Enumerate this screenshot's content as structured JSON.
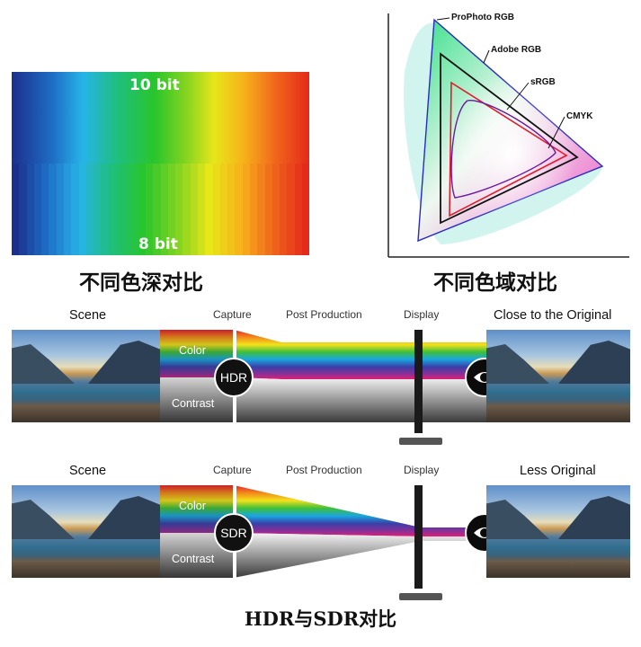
{
  "bit_depth": {
    "top_label": "10 bit",
    "bottom_label": "8 bit",
    "caption": "不同色深对比"
  },
  "gamut": {
    "labels": [
      "ProPhoto RGB",
      "Adobe RGB",
      "sRGB",
      "CMYK"
    ],
    "caption": "不同色域对比"
  },
  "hdr_row": {
    "stages": [
      "Scene",
      "Capture",
      "Post Production",
      "Display",
      "Close to the Original"
    ],
    "badge": "HDR",
    "color_label": "Color",
    "contrast_label": "Contrast"
  },
  "sdr_row": {
    "stages": [
      "Scene",
      "Capture",
      "Post Production",
      "Display",
      "Less Original"
    ],
    "badge": "SDR",
    "color_label": "Color",
    "contrast_label": "Contrast"
  },
  "bottom_caption": "HDR与SDR对比",
  "colors": {
    "spectrum": [
      "#e8202a",
      "#f28a1b",
      "#f3e21a",
      "#3fbf3a",
      "#19a6e0",
      "#3a3fa8",
      "#8d2f96",
      "#e11f73"
    ]
  }
}
